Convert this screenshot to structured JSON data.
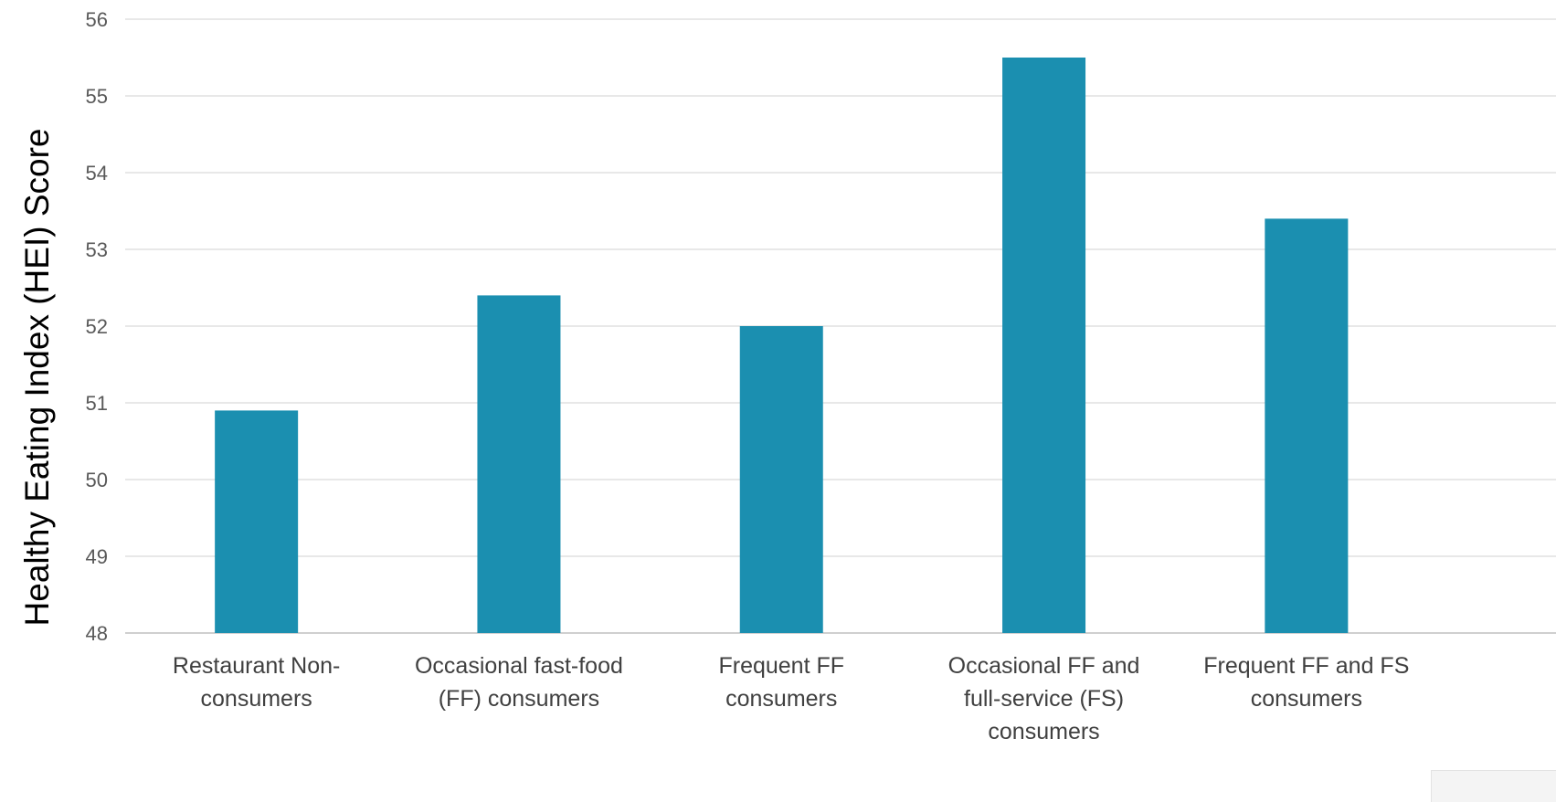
{
  "chart_data": {
    "type": "bar",
    "title": "",
    "xlabel": "",
    "ylabel": "Healthy Eating Index (HEI) Score",
    "ylim": [
      48,
      56
    ],
    "yticks": [
      48,
      49,
      50,
      51,
      52,
      53,
      54,
      55,
      56
    ],
    "grid": true,
    "legend": "none",
    "bar_color": "#1b8fb0",
    "categories": [
      [
        "Restaurant Non-",
        "consumers"
      ],
      [
        "Occasional fast-food",
        "(FF) consumers"
      ],
      [
        "Frequent FF",
        "consumers"
      ],
      [
        "Occasional FF and",
        "full-service (FS)",
        "consumers"
      ],
      [
        "Frequent FF and FS",
        "consumers"
      ]
    ],
    "values": [
      50.9,
      52.4,
      52.0,
      55.5,
      53.4
    ]
  }
}
